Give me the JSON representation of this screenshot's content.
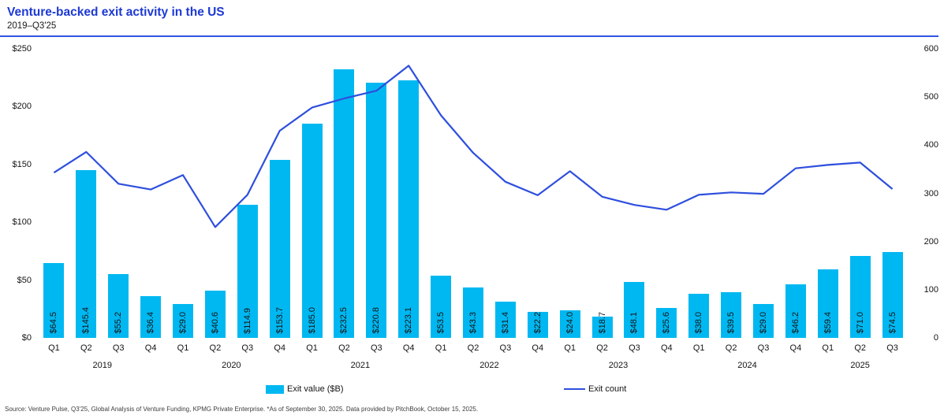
{
  "header": {
    "title": "Venture-backed exit activity in the US",
    "subtitle": "2019–Q3'25"
  },
  "colors": {
    "bar": "#00b8f1",
    "line": "#2e4fdd",
    "title_blue": "#1d39d4",
    "divider_blue": "#3354e0"
  },
  "chart_data": {
    "type": "bar",
    "subtype": "bar-and-line-dual-axis",
    "categories": [
      "Q1",
      "Q2",
      "Q3",
      "Q4",
      "Q1",
      "Q2",
      "Q3",
      "Q4",
      "Q1",
      "Q2",
      "Q3",
      "Q4",
      "Q1",
      "Q2",
      "Q3",
      "Q4",
      "Q1",
      "Q2",
      "Q3",
      "Q4",
      "Q1",
      "Q2",
      "Q3",
      "Q4",
      "Q1",
      "Q2",
      "Q3"
    ],
    "year_groups": [
      {
        "label": "2019",
        "count": 4
      },
      {
        "label": "2020",
        "count": 4
      },
      {
        "label": "2021",
        "count": 4
      },
      {
        "label": "2022",
        "count": 4
      },
      {
        "label": "2023",
        "count": 4
      },
      {
        "label": "2024",
        "count": 4
      },
      {
        "label": "2025",
        "count": 3
      }
    ],
    "series": [
      {
        "name": "Exit value ($B)",
        "type": "bar",
        "axis": "left",
        "values": [
          64.5,
          145.4,
          55.2,
          36.4,
          29.0,
          40.6,
          114.9,
          153.7,
          185.0,
          232.5,
          220.8,
          223.1,
          53.5,
          43.3,
          31.4,
          22.2,
          24.0,
          18.7,
          48.1,
          25.6,
          38.0,
          39.5,
          29.0,
          46.2,
          59.4,
          71.0,
          74.5
        ],
        "data_labels": [
          "$64.5",
          "$145.4",
          "$55.2",
          "$36.4",
          "$29.0",
          "$40.6",
          "$114.9",
          "$153.7",
          "$185.0",
          "$232.5",
          "$220.8",
          "$223.1",
          "$53.5",
          "$43.3",
          "$31.4",
          "$22.2",
          "$24.0",
          "$18.7",
          "$48.1",
          "$25.6",
          "$38.0",
          "$39.5",
          "$29.0",
          "$46.2",
          "$59.4",
          "$71.0",
          "$74.5"
        ]
      },
      {
        "name": "Exit count",
        "type": "line",
        "axis": "right",
        "values": [
          343,
          386,
          320,
          308,
          338,
          230,
          297,
          430,
          478,
          497,
          513,
          565,
          462,
          384,
          324,
          296,
          346,
          293,
          276,
          266,
          297,
          302,
          299,
          352,
          359,
          364,
          309
        ]
      }
    ],
    "left_axis": {
      "tick_labels": [
        "$0",
        "$50",
        "$100",
        "$150",
        "$200",
        "$250"
      ],
      "tick_values": [
        0,
        50,
        100,
        150,
        200,
        250
      ],
      "min": 0,
      "max": 250
    },
    "right_axis": {
      "tick_labels": [
        "0",
        "100",
        "200",
        "300",
        "400",
        "500",
        "600"
      ],
      "tick_values": [
        0,
        100,
        200,
        300,
        400,
        500,
        600
      ],
      "min": 0,
      "max": 600
    },
    "grid": false,
    "legend_position": "bottom",
    "legend": [
      {
        "label": "Exit value ($B)",
        "swatch": "bar"
      },
      {
        "label": "Exit count",
        "swatch": "line"
      }
    ]
  },
  "footer": {
    "source": "Source: Venture Pulse, Q3'25, Global Analysis of Venture Funding, KPMG Private Enterprise. *As of September 30, 2025. Data provided by PitchBook, October 15, 2025."
  }
}
